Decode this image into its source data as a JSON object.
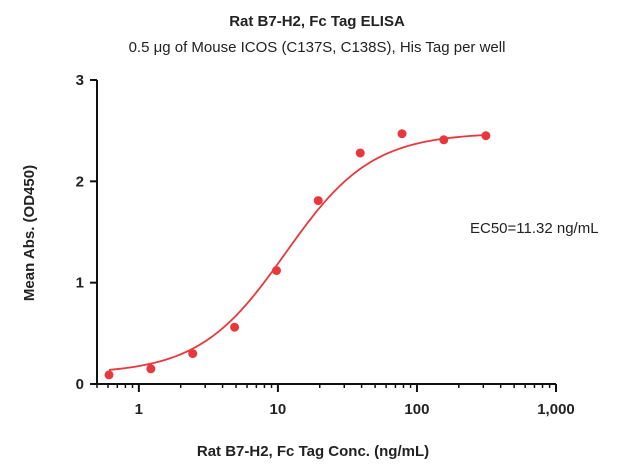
{
  "chart_data": {
    "type": "scatter",
    "title": "Rat B7-H2, Fc Tag ELISA",
    "subtitle": "0.5 μg of Mouse ICOS (C137S, C138S), His Tag per well",
    "xlabel": "Rat B7-H2, Fc Tag Conc. (ng/mL)",
    "ylabel": "Mean Abs. (OD450)",
    "x_scale": "log",
    "xlim": [
      0.5,
      1000
    ],
    "ylim": [
      0,
      3
    ],
    "x_ticks": [
      1,
      10,
      100,
      1000
    ],
    "x_tick_labels": [
      "1",
      "10",
      "100",
      "1,000"
    ],
    "y_ticks": [
      0,
      1,
      2,
      3
    ],
    "y_tick_labels": [
      "0",
      "1",
      "2",
      "3"
    ],
    "grid": false,
    "annotation": "EC50=11.32 ng/mL",
    "color": "#e8383d",
    "series": [
      {
        "x": [
          0.61,
          1.22,
          2.44,
          4.88,
          9.77,
          19.5,
          39.1,
          78.1,
          156,
          313
        ],
        "y": [
          0.09,
          0.15,
          0.3,
          0.56,
          1.12,
          1.81,
          2.28,
          2.47,
          2.41,
          2.45
        ]
      }
    ],
    "fit_curve": {
      "model": "4PL",
      "bottom": 0.1,
      "top": 2.48,
      "ec50": 11.32,
      "hill": 1.4
    }
  }
}
